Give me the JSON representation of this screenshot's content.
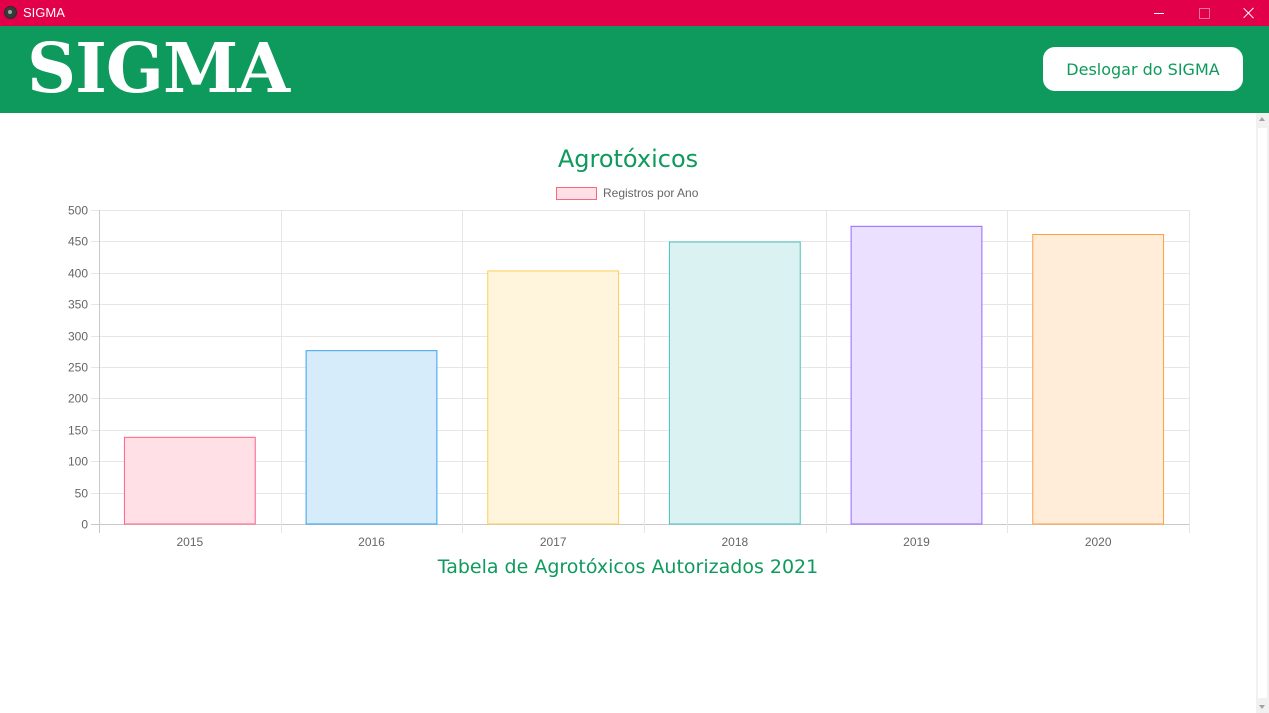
{
  "window": {
    "title": "SIGMA"
  },
  "header": {
    "brand": "SIGMA",
    "logout_label": "Deslogar do SIGMA"
  },
  "page": {
    "chart_heading": "Agrotóxicos",
    "table_heading": "Tabela de Agrotóxicos Autorizados 2021"
  },
  "colors": {
    "titlebar": "#e3004a",
    "header": "#0f9a5d",
    "heading_text": "#0f9a5d"
  },
  "chart_data": {
    "type": "bar",
    "title": "",
    "categories": [
      "2015",
      "2016",
      "2017",
      "2018",
      "2019",
      "2020"
    ],
    "series": [
      {
        "name": "Registros por Ano",
        "values": [
          138,
          276,
          403,
          449,
          474,
          461
        ]
      }
    ],
    "bar_colors": [
      {
        "fill": "#ffe0e6",
        "stroke": "#ff6384"
      },
      {
        "fill": "#d7ecfb",
        "stroke": "#36a2eb"
      },
      {
        "fill": "#fff5dd",
        "stroke": "#ffcd56"
      },
      {
        "fill": "#dbf2f2",
        "stroke": "#4bc0c0"
      },
      {
        "fill": "#ebe0ff",
        "stroke": "#9966ff"
      },
      {
        "fill": "#ffecd9",
        "stroke": "#ff9f40"
      }
    ],
    "legend": {
      "position": "top",
      "label": "Registros por Ano",
      "fill": "#ffe0e6",
      "stroke": "#ff6384"
    },
    "ylim": [
      0,
      500
    ],
    "yticks": [
      0,
      50,
      100,
      150,
      200,
      250,
      300,
      350,
      400,
      450,
      500
    ],
    "grid": true,
    "xlabel": "",
    "ylabel": ""
  }
}
